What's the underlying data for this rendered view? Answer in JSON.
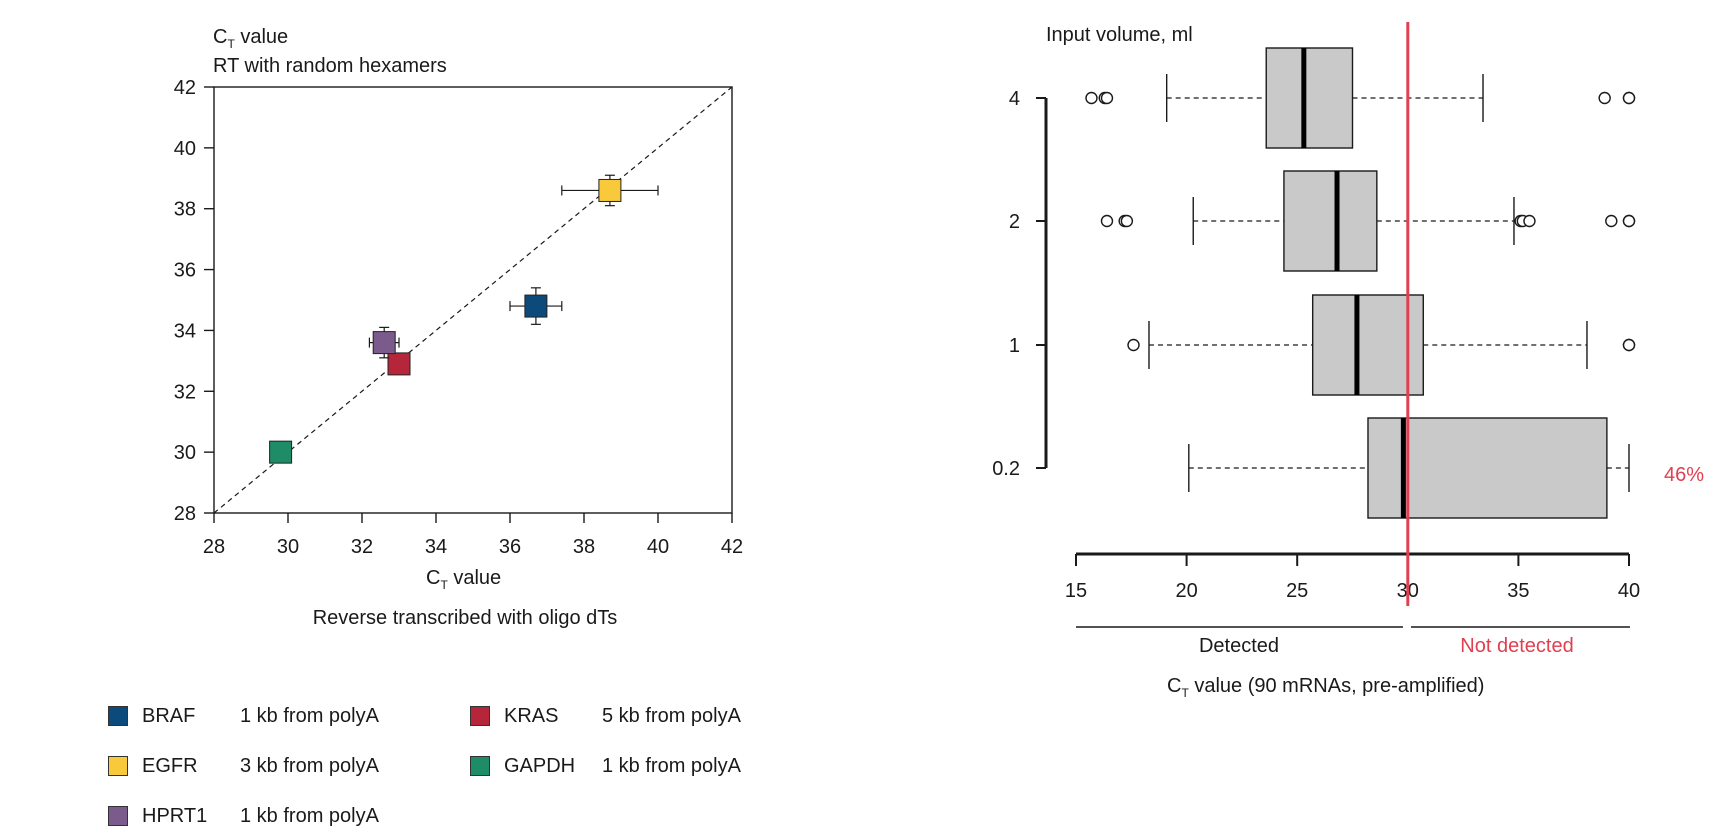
{
  "scatter": {
    "ylabel_main": "C",
    "ylabel_sub": "T",
    "ylabel_rest": " value",
    "ylabel_line2": "RT with random hexamers",
    "xlabel_main": "C",
    "xlabel_sub": "T",
    "xlabel_rest": " value",
    "xlabel_line2": "Reverse transcribed with oligo dTs",
    "legend": [
      {
        "gene": "BRAF",
        "desc": "1 kb from polyA",
        "color": "#0d4a7c"
      },
      {
        "gene": "KRAS",
        "desc": "5 kb from polyA",
        "color": "#b5263a"
      },
      {
        "gene": "EGFR",
        "desc": "3 kb from polyA",
        "color": "#f9c93c"
      },
      {
        "gene": "GAPDH",
        "desc": "1 kb from polyA",
        "color": "#1e8c66"
      },
      {
        "gene": "HPRT1",
        "desc": "1 kb from polyA",
        "color": "#7b5b8c"
      }
    ]
  },
  "boxplot": {
    "title": "Input volume, ml",
    "detected_label": "Detected",
    "not_detected_label": "Not detected",
    "xlabel_main": "C",
    "xlabel_sub": "T",
    "xlabel_rest": " value (90 mRNAs, pre-amplified)",
    "percent_label": "46%",
    "threshold_color": "#e0404f",
    "box_color": "#c9c9c9"
  },
  "chart_data": [
    {
      "type": "scatter",
      "xlabel": "CT value — Reverse transcribed with oligo dTs",
      "ylabel": "CT value — RT with random hexamers",
      "xlim": [
        28,
        42
      ],
      "ylim": [
        28,
        42
      ],
      "xticks": [
        28,
        30,
        32,
        34,
        36,
        38,
        40,
        42
      ],
      "yticks": [
        28,
        30,
        32,
        34,
        36,
        38,
        40,
        42
      ],
      "diagonal_reference": true,
      "points": [
        {
          "name": "BRAF",
          "x": 36.7,
          "y": 34.8,
          "xerr": [
            36.0,
            37.4
          ],
          "yerr": [
            34.2,
            35.4
          ],
          "color": "#0d4a7c"
        },
        {
          "name": "KRAS",
          "x": 33.0,
          "y": 32.9,
          "xerr": null,
          "yerr": null,
          "color": "#b5263a"
        },
        {
          "name": "EGFR",
          "x": 38.7,
          "y": 38.6,
          "xerr": [
            37.4,
            40.0
          ],
          "yerr": [
            38.1,
            39.1
          ],
          "color": "#f9c93c"
        },
        {
          "name": "GAPDH",
          "x": 29.8,
          "y": 30.0,
          "xerr": null,
          "yerr": null,
          "color": "#1e8c66"
        },
        {
          "name": "HPRT1",
          "x": 32.6,
          "y": 33.6,
          "xerr": [
            32.2,
            33.0
          ],
          "yerr": [
            33.1,
            34.1
          ],
          "color": "#7b5b8c"
        }
      ]
    },
    {
      "type": "boxplot",
      "orientation": "horizontal",
      "xlim": [
        15,
        40
      ],
      "xticks": [
        15,
        20,
        25,
        30,
        35,
        40
      ],
      "threshold": 30,
      "categories": [
        "4",
        "2",
        "1",
        "0.2"
      ],
      "boxes": [
        {
          "category": "4",
          "whisker_low": 19.1,
          "q1": 23.6,
          "median": 25.3,
          "q3": 27.5,
          "whisker_high": 33.4,
          "outliers": [
            15.7,
            16.3,
            16.4,
            38.9,
            40,
            40
          ]
        },
        {
          "category": "2",
          "whisker_low": 20.3,
          "q1": 24.4,
          "median": 26.8,
          "q3": 28.6,
          "whisker_high": 34.8,
          "outliers": [
            16.4,
            17.2,
            17.3,
            35.1,
            35.2,
            35.5,
            39.2,
            40,
            40
          ]
        },
        {
          "category": "1",
          "whisker_low": 18.3,
          "q1": 25.7,
          "median": 27.7,
          "q3": 30.7,
          "whisker_high": 38.1,
          "outliers": [
            17.6,
            40,
            40
          ]
        },
        {
          "category": "0.2",
          "whisker_low": 20.1,
          "q1": 28.2,
          "median": 29.8,
          "q3": 39.0,
          "whisker_high": 40.0,
          "outliers": [],
          "annotation": "46%"
        }
      ]
    }
  ]
}
